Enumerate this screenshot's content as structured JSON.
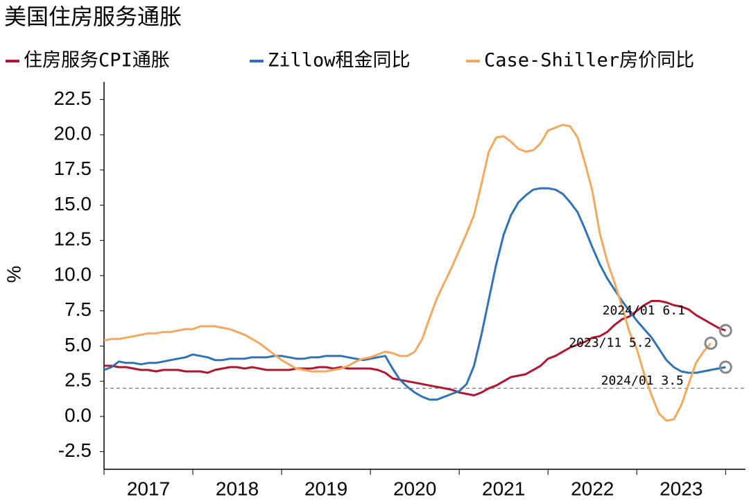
{
  "chart_data": {
    "type": "line",
    "title": "美国住房服务通胀",
    "y_label": "%",
    "categories": [
      "2017/01",
      "2017/02",
      "2017/03",
      "2017/04",
      "2017/05",
      "2017/06",
      "2017/07",
      "2017/08",
      "2017/09",
      "2017/10",
      "2017/11",
      "2017/12",
      "2018/01",
      "2018/02",
      "2018/03",
      "2018/04",
      "2018/05",
      "2018/06",
      "2018/07",
      "2018/08",
      "2018/09",
      "2018/10",
      "2018/11",
      "2018/12",
      "2019/01",
      "2019/02",
      "2019/03",
      "2019/04",
      "2019/05",
      "2019/06",
      "2019/07",
      "2019/08",
      "2019/09",
      "2019/10",
      "2019/11",
      "2019/12",
      "2020/01",
      "2020/02",
      "2020/03",
      "2020/04",
      "2020/05",
      "2020/06",
      "2020/07",
      "2020/08",
      "2020/09",
      "2020/10",
      "2020/11",
      "2020/12",
      "2021/01",
      "2021/02",
      "2021/03",
      "2021/04",
      "2021/05",
      "2021/06",
      "2021/07",
      "2021/08",
      "2021/09",
      "2021/10",
      "2021/11",
      "2021/12",
      "2022/01",
      "2022/02",
      "2022/03",
      "2022/04",
      "2022/05",
      "2022/06",
      "2022/07",
      "2022/08",
      "2022/09",
      "2022/10",
      "2022/11",
      "2022/12",
      "2023/01",
      "2023/02",
      "2023/03",
      "2023/04",
      "2023/05",
      "2023/06",
      "2023/07",
      "2023/08",
      "2023/09",
      "2023/10",
      "2023/11",
      "2023/12",
      "2024/01"
    ],
    "year_labels": [
      "2017",
      "2018",
      "2019",
      "2020",
      "2021",
      "2022",
      "2023"
    ],
    "series": [
      {
        "name": "住房服务CPI通胀",
        "color": "#b3152e",
        "values": [
          3.6,
          3.6,
          3.5,
          3.5,
          3.4,
          3.3,
          3.3,
          3.2,
          3.3,
          3.3,
          3.3,
          3.2,
          3.2,
          3.2,
          3.1,
          3.3,
          3.4,
          3.5,
          3.5,
          3.4,
          3.5,
          3.4,
          3.3,
          3.3,
          3.3,
          3.3,
          3.4,
          3.4,
          3.4,
          3.5,
          3.5,
          3.4,
          3.5,
          3.4,
          3.4,
          3.4,
          3.4,
          3.3,
          3.1,
          2.7,
          2.6,
          2.5,
          2.4,
          2.3,
          2.2,
          2.1,
          2.0,
          1.9,
          1.7,
          1.6,
          1.5,
          1.7,
          2.0,
          2.2,
          2.5,
          2.8,
          2.9,
          3.0,
          3.3,
          3.6,
          4.1,
          4.3,
          4.6,
          4.9,
          5.1,
          5.3,
          5.6,
          5.7,
          6.0,
          6.5,
          6.9,
          7.1,
          7.5,
          7.9,
          8.2,
          8.2,
          8.1,
          7.9,
          7.8,
          7.6,
          7.2,
          6.9,
          6.6,
          6.3,
          6.1
        ]
      },
      {
        "name": "Zillow租金同比",
        "color": "#2e72b8",
        "values": [
          3.3,
          3.5,
          3.9,
          3.8,
          3.8,
          3.7,
          3.8,
          3.8,
          3.9,
          4.0,
          4.1,
          4.2,
          4.4,
          4.3,
          4.2,
          4.0,
          4.0,
          4.1,
          4.1,
          4.1,
          4.2,
          4.2,
          4.2,
          4.3,
          4.3,
          4.2,
          4.1,
          4.1,
          4.2,
          4.2,
          4.3,
          4.3,
          4.3,
          4.2,
          4.1,
          4.0,
          4.1,
          4.2,
          4.3,
          3.4,
          2.6,
          2.1,
          1.7,
          1.4,
          1.2,
          1.2,
          1.4,
          1.6,
          1.8,
          2.3,
          3.6,
          5.8,
          8.3,
          10.8,
          12.9,
          14.3,
          15.2,
          15.7,
          16.1,
          16.2,
          16.2,
          16.1,
          15.8,
          15.2,
          14.5,
          13.3,
          12.0,
          10.8,
          9.8,
          9.0,
          8.2,
          7.5,
          6.8,
          6.2,
          5.6,
          4.8,
          4.0,
          3.5,
          3.2,
          3.1,
          3.1,
          3.2,
          3.3,
          3.4,
          3.5
        ]
      },
      {
        "name": "Case-Shiller房价同比",
        "color": "#f5a75c",
        "values": [
          5.4,
          5.5,
          5.5,
          5.6,
          5.7,
          5.8,
          5.9,
          5.9,
          6.0,
          6.0,
          6.1,
          6.2,
          6.2,
          6.4,
          6.4,
          6.4,
          6.3,
          6.2,
          6.0,
          5.8,
          5.5,
          5.2,
          4.8,
          4.4,
          4.0,
          3.7,
          3.4,
          3.3,
          3.2,
          3.2,
          3.2,
          3.3,
          3.4,
          3.6,
          3.9,
          4.1,
          4.2,
          4.4,
          4.6,
          4.5,
          4.3,
          4.3,
          4.6,
          5.5,
          7.0,
          8.4,
          9.5,
          10.6,
          11.8,
          13.0,
          14.3,
          16.5,
          18.8,
          19.8,
          19.9,
          19.5,
          19.0,
          18.8,
          18.9,
          19.4,
          20.3,
          20.5,
          20.7,
          20.6,
          19.8,
          18.0,
          16.0,
          13.0,
          11.0,
          9.5,
          7.8,
          6.0,
          4.8,
          3.0,
          1.5,
          0.2,
          -0.3,
          -0.2,
          0.8,
          2.3,
          3.8,
          4.6,
          5.2,
          null,
          null
        ]
      }
    ],
    "annotations": [
      {
        "text": "2024/01  6.1",
        "series": 0,
        "index": 84
      },
      {
        "text": "2023/11  5.2",
        "series": 2,
        "index": 82
      },
      {
        "text": "2024/01  3.5",
        "series": 1,
        "index": 84
      }
    ],
    "reference_line": 2,
    "ylim": [
      -3.75,
      23.75
    ],
    "yticks": [
      {
        "value": -2.5,
        "label": "-2.5"
      },
      {
        "value": 0,
        "label": "0.0"
      },
      2.5,
      {
        "value": 5,
        "label": "5.0"
      },
      7.5,
      {
        "value": 10,
        "label": "10.0"
      },
      12.5,
      {
        "value": 15,
        "label": "15.0"
      },
      17.5,
      {
        "value": 20,
        "label": "20.0"
      },
      22.5
    ],
    "grid": false
  }
}
